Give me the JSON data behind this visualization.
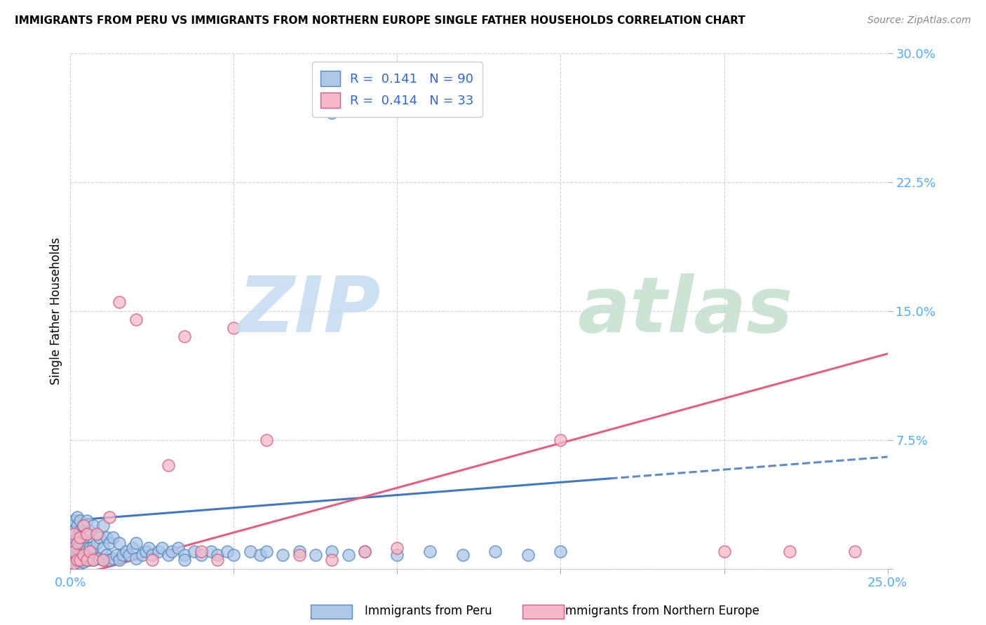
{
  "title": "IMMIGRANTS FROM PERU VS IMMIGRANTS FROM NORTHERN EUROPE SINGLE FATHER HOUSEHOLDS CORRELATION CHART",
  "source": "Source: ZipAtlas.com",
  "ylabel": "Single Father Households",
  "xlim": [
    0.0,
    0.25
  ],
  "ylim": [
    0.0,
    0.3
  ],
  "xticks": [
    0.0,
    0.05,
    0.1,
    0.15,
    0.2,
    0.25
  ],
  "yticks": [
    0.0,
    0.075,
    0.15,
    0.225,
    0.3
  ],
  "xticklabels": [
    "0.0%",
    "",
    "",
    "",
    "",
    "25.0%"
  ],
  "yticklabels": [
    "",
    "7.5%",
    "15.0%",
    "22.5%",
    "30.0%"
  ],
  "peru_R": 0.141,
  "peru_N": 90,
  "northern_europe_R": 0.414,
  "northern_europe_N": 33,
  "peru_color": "#aec6e8",
  "northern_europe_color": "#f5b8c8",
  "peru_edge_color": "#5588bb",
  "northern_europe_edge_color": "#d06080",
  "peru_line_color": "#4477bb",
  "northern_europe_line_color": "#e06080",
  "watermark_zip_color": "#c8ddf0",
  "watermark_atlas_color": "#c8e0d0",
  "legend_text_color": "#3366cc",
  "axis_tick_color": "#55aaff",
  "peru_x": [
    0.001,
    0.001,
    0.001,
    0.001,
    0.001,
    0.001,
    0.001,
    0.001,
    0.001,
    0.002,
    0.002,
    0.002,
    0.002,
    0.002,
    0.002,
    0.002,
    0.003,
    0.003,
    0.003,
    0.003,
    0.003,
    0.004,
    0.004,
    0.004,
    0.004,
    0.005,
    0.005,
    0.005,
    0.005,
    0.006,
    0.006,
    0.006,
    0.007,
    0.007,
    0.007,
    0.008,
    0.008,
    0.009,
    0.009,
    0.01,
    0.01,
    0.01,
    0.011,
    0.011,
    0.012,
    0.012,
    0.013,
    0.013,
    0.014,
    0.015,
    0.015,
    0.016,
    0.017,
    0.018,
    0.019,
    0.02,
    0.02,
    0.022,
    0.023,
    0.024,
    0.025,
    0.027,
    0.028,
    0.03,
    0.031,
    0.033,
    0.035,
    0.038,
    0.04,
    0.043,
    0.045,
    0.048,
    0.05,
    0.055,
    0.058,
    0.06,
    0.065,
    0.07,
    0.075,
    0.08,
    0.085,
    0.09,
    0.1,
    0.11,
    0.12,
    0.13,
    0.14,
    0.15,
    0.08,
    0.035
  ],
  "peru_y": [
    0.001,
    0.003,
    0.005,
    0.008,
    0.01,
    0.013,
    0.018,
    0.022,
    0.028,
    0.002,
    0.005,
    0.008,
    0.012,
    0.018,
    0.025,
    0.03,
    0.003,
    0.008,
    0.015,
    0.022,
    0.028,
    0.004,
    0.01,
    0.018,
    0.025,
    0.005,
    0.012,
    0.02,
    0.028,
    0.005,
    0.012,
    0.022,
    0.005,
    0.013,
    0.025,
    0.006,
    0.015,
    0.006,
    0.018,
    0.005,
    0.012,
    0.025,
    0.008,
    0.018,
    0.005,
    0.015,
    0.006,
    0.018,
    0.008,
    0.005,
    0.015,
    0.008,
    0.01,
    0.008,
    0.012,
    0.006,
    0.015,
    0.008,
    0.01,
    0.012,
    0.008,
    0.01,
    0.012,
    0.008,
    0.01,
    0.012,
    0.008,
    0.01,
    0.008,
    0.01,
    0.008,
    0.01,
    0.008,
    0.01,
    0.008,
    0.01,
    0.008,
    0.01,
    0.008,
    0.01,
    0.008,
    0.01,
    0.008,
    0.01,
    0.008,
    0.01,
    0.008,
    0.01,
    0.265,
    0.005
  ],
  "ne_x": [
    0.001,
    0.001,
    0.001,
    0.002,
    0.002,
    0.003,
    0.003,
    0.004,
    0.004,
    0.005,
    0.005,
    0.006,
    0.007,
    0.008,
    0.01,
    0.012,
    0.015,
    0.02,
    0.025,
    0.03,
    0.035,
    0.04,
    0.045,
    0.05,
    0.06,
    0.07,
    0.08,
    0.09,
    0.1,
    0.15,
    0.2,
    0.22,
    0.24
  ],
  "ne_y": [
    0.003,
    0.01,
    0.02,
    0.005,
    0.015,
    0.005,
    0.018,
    0.008,
    0.025,
    0.005,
    0.02,
    0.01,
    0.005,
    0.02,
    0.005,
    0.03,
    0.155,
    0.145,
    0.005,
    0.06,
    0.135,
    0.01,
    0.005,
    0.14,
    0.075,
    0.008,
    0.005,
    0.01,
    0.012,
    0.075,
    0.01,
    0.01,
    0.01
  ]
}
